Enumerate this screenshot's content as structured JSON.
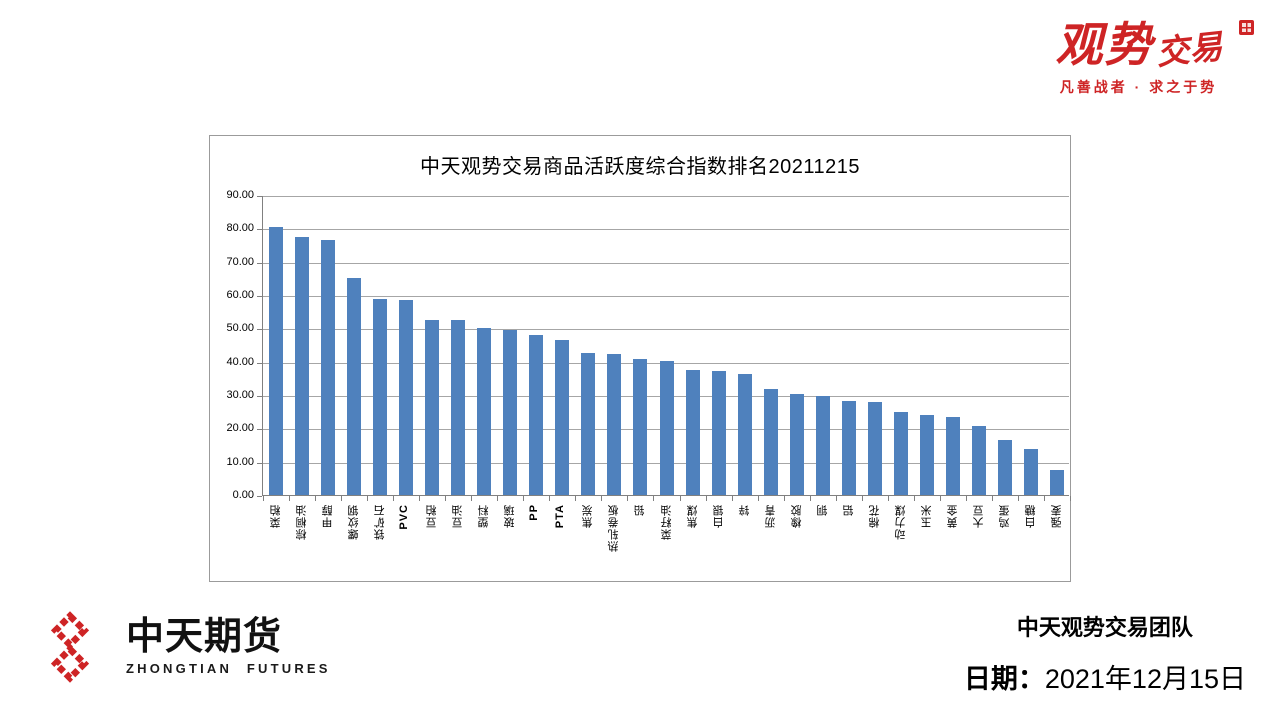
{
  "brand": {
    "wordmark_large": "观势",
    "wordmark_small": "交易",
    "tagline": "凡善战者 · 求之于势"
  },
  "chart_data": {
    "type": "bar",
    "title": "中天观势交易商品活跃度综合指数排名20211215",
    "categories": [
      "菜粕",
      "棕榈油",
      "甲醇",
      "螺纹钢",
      "铁矿石",
      "PVC",
      "豆粕",
      "豆油",
      "塑料",
      "玻璃",
      "PP",
      "PTA",
      "焦炭",
      "热轧卷板",
      "铅",
      "菜籽油",
      "焦煤",
      "白银",
      "锌",
      "沥青",
      "橡胶",
      "铜",
      "铝",
      "棉花",
      "动力煤",
      "玉米",
      "黄金",
      "大豆",
      "鸡蛋",
      "白糖",
      "强麦"
    ],
    "values": [
      80.3,
      77.5,
      76.4,
      65.0,
      58.9,
      58.6,
      52.6,
      52.5,
      50.0,
      49.6,
      48.0,
      46.5,
      42.7,
      42.2,
      40.8,
      40.1,
      37.4,
      37.1,
      36.3,
      31.8,
      30.2,
      29.7,
      28.1,
      27.8,
      24.8,
      23.9,
      23.4,
      20.7,
      16.4,
      13.7,
      7.6
    ],
    "xlabel": "",
    "ylabel": "",
    "ylim": [
      0,
      90
    ],
    "ytick_step": 10,
    "yticks": [
      "0.00",
      "10.00",
      "20.00",
      "30.00",
      "40.00",
      "50.00",
      "60.00",
      "70.00",
      "80.00",
      "90.00"
    ],
    "grid": true,
    "legend": false,
    "bar_color": "#4F81BD"
  },
  "footer": {
    "company_cn": "中天期货",
    "company_en": "ZHONGTIAN FUTURES",
    "team": "中天观势交易团队",
    "date_label": "日期：",
    "date_value": "2021年12月15日"
  },
  "colors": {
    "accent_red": "#CE2425",
    "bar_blue": "#4F81BD",
    "grid_gray": "#A6A6A6",
    "axis_gray": "#808080"
  }
}
